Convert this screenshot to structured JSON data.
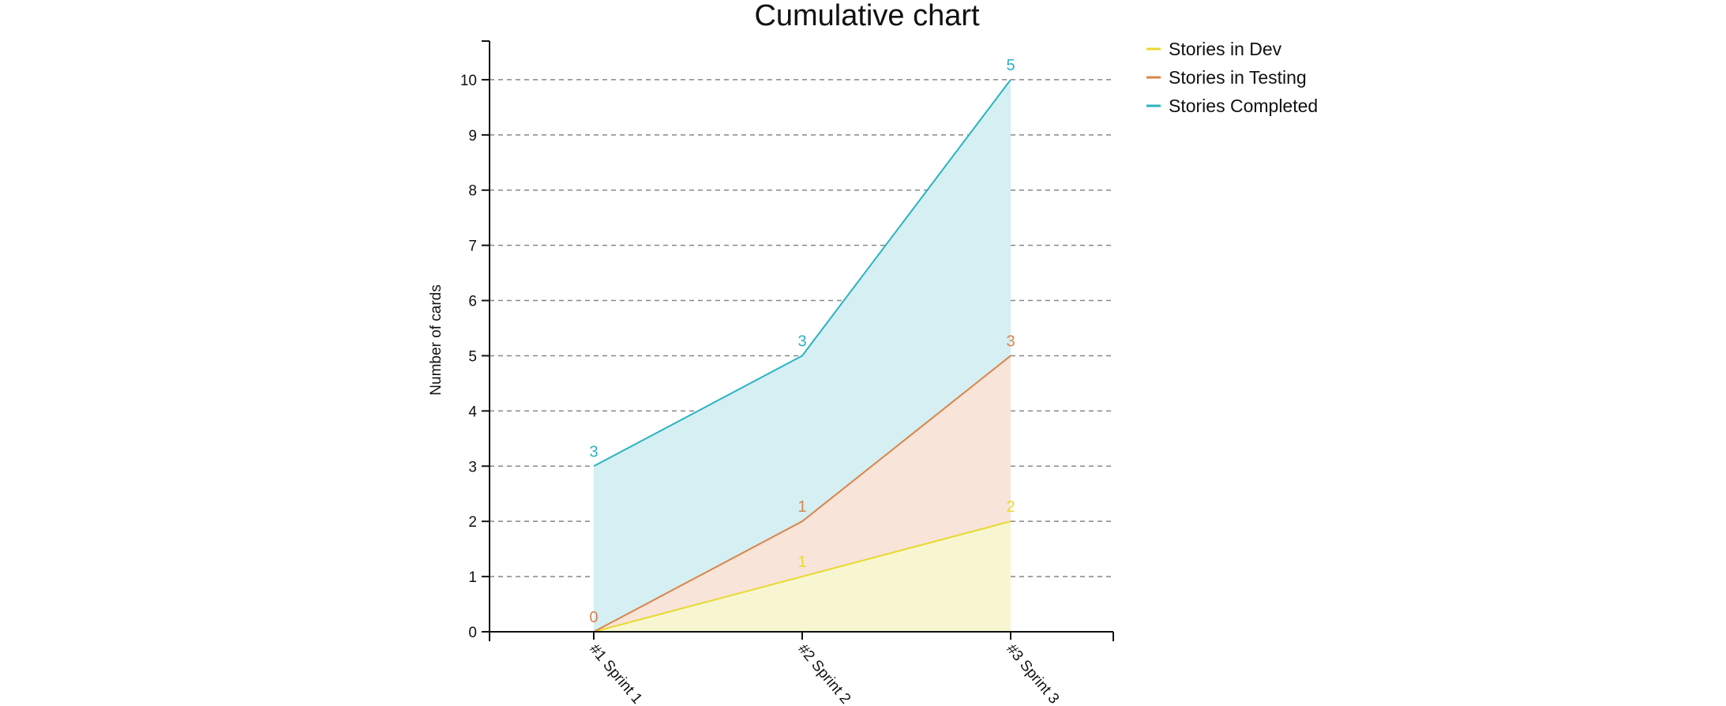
{
  "chart_data": {
    "type": "area",
    "title": "Cumulative chart",
    "ylabel": "Number of cards",
    "xlabel": "",
    "categories": [
      "#1 Sprint 1",
      "#2 Sprint 2",
      "#3 Sprint 3"
    ],
    "ylim": [
      0,
      10.7
    ],
    "y_ticks": [
      0,
      1,
      2,
      3,
      4,
      5,
      6,
      7,
      8,
      9,
      10
    ],
    "grid": "horizontal dashed",
    "legend_position": "top-right",
    "stacked": true,
    "series": [
      {
        "name": "Stories in Dev",
        "color": "#e8d92e",
        "fill": "#f7f6d0",
        "values": [
          0,
          1,
          2
        ],
        "cumulative": [
          0,
          1,
          2
        ],
        "labels": [
          "",
          "1",
          "2"
        ]
      },
      {
        "name": "Stories in Testing",
        "color": "#d9844a",
        "fill": "#f8e4d8",
        "values": [
          0,
          1,
          3
        ],
        "cumulative": [
          0,
          2,
          5
        ],
        "labels": [
          "0",
          "1",
          "3"
        ]
      },
      {
        "name": "Stories Completed",
        "color": "#2ab3c0",
        "fill": "#d5eff3",
        "values": [
          3,
          3,
          5
        ],
        "cumulative": [
          3,
          5,
          10
        ],
        "labels": [
          "3",
          "3",
          "5"
        ]
      }
    ]
  }
}
